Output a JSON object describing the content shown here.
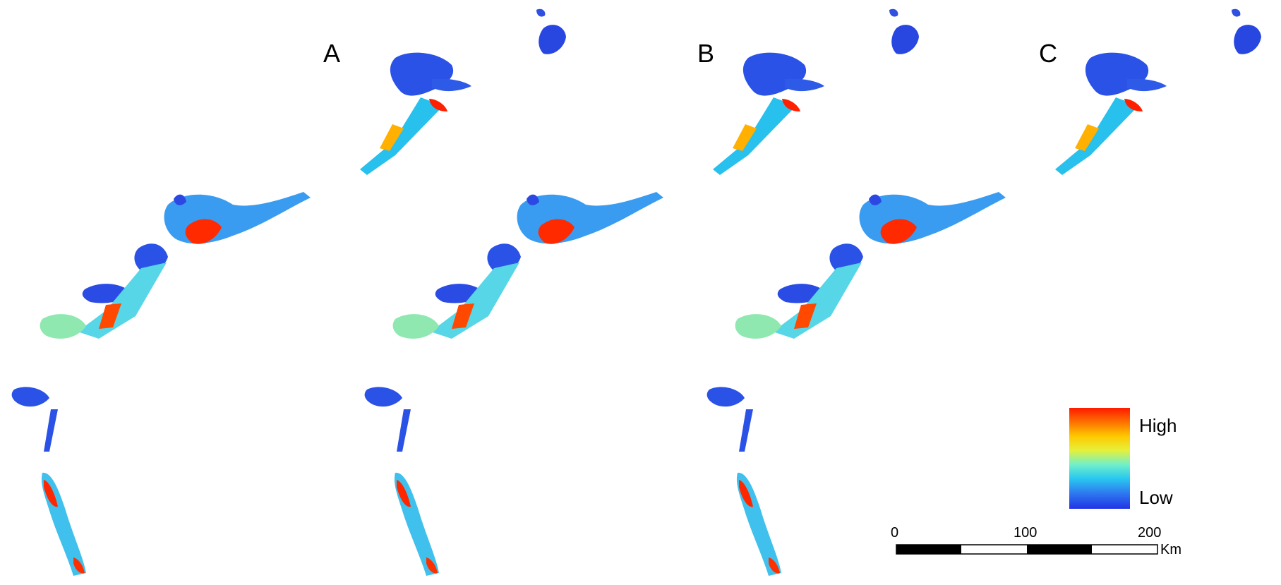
{
  "panels": [
    {
      "label": "A"
    },
    {
      "label": "B"
    },
    {
      "label": "C"
    }
  ],
  "legend": {
    "high_label": "High",
    "low_label": "Low",
    "colors": [
      "#ff1a00",
      "#ffc800",
      "#72f0c8",
      "#2233e6"
    ]
  },
  "scalebar": {
    "ticks": [
      "0",
      "100",
      "200"
    ],
    "unit": "Km"
  }
}
